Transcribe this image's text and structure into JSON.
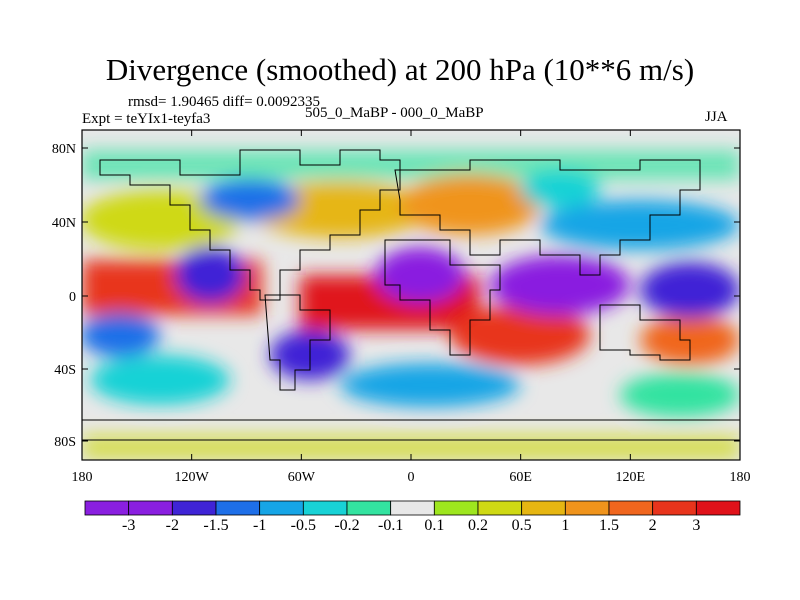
{
  "title": "Divergence (smoothed) at 200 hPa (10**6 m/s)",
  "stats": "rmsd= 1.90465 diff= 0.0092335",
  "expt": "Expt = teYIx1-teyfa3",
  "comparison": "505_0_MaBP - 000_0_MaBP",
  "season": "JJA",
  "lat_ticks": [
    "80N",
    "40N",
    "0",
    "40S",
    "80S"
  ],
  "lon_ticks": [
    "180",
    "120W",
    "60W",
    "0",
    "60E",
    "120E",
    "180"
  ],
  "colorbar": {
    "labels": [
      "-3",
      "-2",
      "-1.5",
      "-1",
      "-0.5",
      "-0.2",
      "-0.1",
      "0.1",
      "0.2",
      "0.5",
      "1",
      "1.5",
      "2",
      "3"
    ],
    "colors": [
      "#8a1fe0",
      "#3f24d6",
      "#1e6fe8",
      "#16a5e6",
      "#18d2d6",
      "#33e3a0",
      "#e8e8e8",
      "#9ee61e",
      "#cfd914",
      "#e6b612",
      "#f0941c",
      "#f0661e",
      "#e8341c",
      "#e0121a"
    ]
  }
}
